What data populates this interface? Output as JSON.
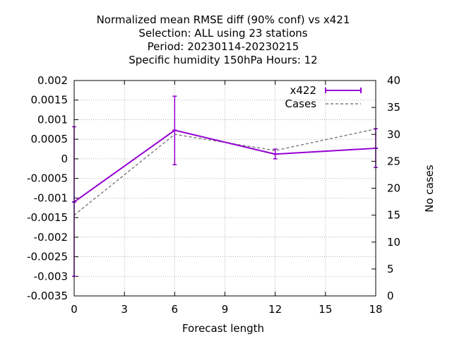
{
  "chart_data": {
    "type": "line",
    "title_lines": [
      "Normalized mean RMSE diff (90% conf) vs x421",
      "Selection: ALL using    23 stations",
      "Period: 20230114-20230215",
      "Specific humidity 150hPa   Hours:  12"
    ],
    "xlabel": "Forecast length",
    "ylabel": "",
    "y2label": "No cases",
    "x_ticks": [
      0,
      3,
      6,
      9,
      12,
      15,
      18
    ],
    "xlim": [
      0,
      18
    ],
    "y_ticks": [
      "0.002",
      "0.0015",
      "0.001",
      "0.0005",
      "0",
      "-0.0005",
      "-0.001",
      "-0.0015",
      "-0.002",
      "-0.0025",
      "-0.003",
      "-0.0035"
    ],
    "y_tick_values": [
      0.002,
      0.0015,
      0.001,
      0.0005,
      0,
      -0.0005,
      -0.001,
      -0.0015,
      -0.002,
      -0.0025,
      -0.003,
      -0.0035
    ],
    "ylim": [
      -0.0035,
      0.002
    ],
    "y2_ticks": [
      "40",
      "35",
      "30",
      "25",
      "20",
      "15",
      "10",
      "5",
      "0"
    ],
    "y2_tick_values": [
      40,
      35,
      30,
      25,
      20,
      15,
      10,
      5,
      0
    ],
    "y2lim": [
      0,
      40
    ],
    "grid": true,
    "legend_position": "top-right",
    "series": [
      {
        "name": "x422",
        "axis": "y",
        "color": "#9400d3",
        "style": "solid-errorbars",
        "x": [
          0,
          6,
          12,
          18
        ],
        "values": [
          -0.0011,
          0.00073,
          0.00012,
          0.00027
        ],
        "err_low": [
          -0.003,
          -0.00015,
          0.0,
          -0.00022
        ],
        "err_high": [
          0.00082,
          0.0016,
          0.00025,
          0.00077
        ]
      },
      {
        "name": "Cases",
        "axis": "y2",
        "color": "#808080",
        "style": "dashed",
        "x": [
          0,
          6,
          12,
          18
        ],
        "values": [
          15,
          30,
          27,
          31
        ]
      }
    ]
  }
}
